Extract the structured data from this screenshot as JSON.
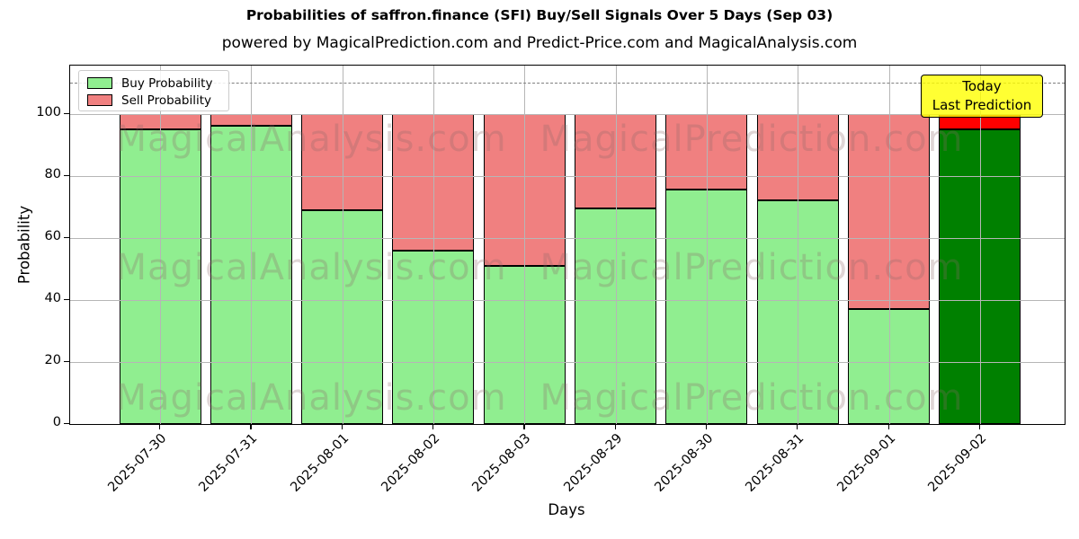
{
  "title": "Probabilities of saffron.finance (SFI) Buy/Sell Signals Over 5 Days (Sep 03)",
  "subtitle": "powered by MagicalPrediction.com and Predict-Price.com and MagicalAnalysis.com",
  "legend": {
    "buy_label": "Buy Probability",
    "sell_label": "Sell Probability"
  },
  "annotation": {
    "line1": "Today",
    "line2": "Last Prediction"
  },
  "axes": {
    "ylabel": "Probability",
    "xlabel": "Days",
    "yticks": [
      0,
      20,
      40,
      60,
      80,
      100
    ]
  },
  "watermarks": [
    "MagicalAnalysis.com",
    "MagicalPrediction.com"
  ],
  "colors": {
    "buy": "#90ee90",
    "sell": "#f08080",
    "today_buy": "#008000",
    "today_sell": "#ff0000",
    "annotation_bg": "#ffff00",
    "grid": "#b6b6b6",
    "dashed_line": "#7f7f7f"
  },
  "chart_data": {
    "type": "bar",
    "stacked": true,
    "title": "Probabilities of saffron.finance (SFI) Buy/Sell Signals Over 5 Days (Sep 03)",
    "xlabel": "Days",
    "ylabel": "Probability",
    "categories": [
      "2025-07-30",
      "2025-07-31",
      "2025-08-01",
      "2025-08-02",
      "2025-08-03",
      "2025-08-29",
      "2025-08-30",
      "2025-08-31",
      "2025-09-01",
      "2025-09-02"
    ],
    "series": [
      {
        "name": "Buy Probability",
        "color": "#90ee90",
        "values": [
          95,
          96,
          69,
          56,
          51,
          69.5,
          75.5,
          72,
          37,
          95
        ]
      },
      {
        "name": "Sell Probability",
        "color": "#f08080",
        "values": [
          5,
          4,
          31,
          44,
          49,
          30.5,
          24.5,
          28,
          63,
          5
        ]
      }
    ],
    "today_index": 9,
    "today_colors": {
      "buy": "#008000",
      "sell": "#ff0000"
    },
    "dashed_line_y": 110,
    "ylim": [
      0,
      115.5
    ],
    "grid": true,
    "legend_position": "upper-left"
  }
}
